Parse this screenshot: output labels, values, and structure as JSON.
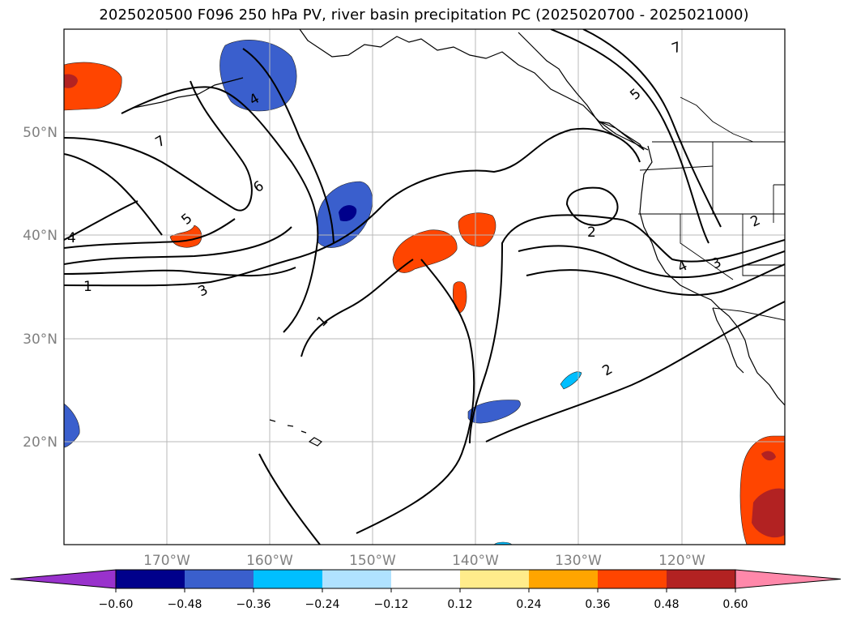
{
  "title": "2025020500 F096 250 hPa PV, river basin precipitation PC (2025020700 - 2025021000)",
  "map": {
    "lon_range": [
      -180,
      -110
    ],
    "lat_range": [
      10,
      60
    ],
    "lon_ticks": [
      "170°W",
      "160°W",
      "150°W",
      "140°W",
      "130°W",
      "120°W"
    ],
    "lat_ticks": [
      "50°N",
      "40°N",
      "30°N",
      "20°N"
    ],
    "gridlines": true,
    "contour_field": "250 hPa PV",
    "contour_labels": [
      "7",
      "4",
      "5",
      "6",
      "1",
      "3",
      "2",
      "7",
      "5",
      "2",
      "4",
      "3",
      "2",
      "1",
      "4",
      "5"
    ],
    "shaded_field": "river basin precipitation PC"
  },
  "colorbar": {
    "tick_labels": [
      "−0.60",
      "−0.48",
      "−0.36",
      "−0.24",
      "−0.12",
      "0.12",
      "0.24",
      "0.36",
      "0.48",
      "0.60"
    ],
    "colors": [
      "#9932cc",
      "#00008b",
      "#3a5fcd",
      "#00bfff",
      "#b0e2ff",
      "#ffffff",
      "#ffec8b",
      "#ffa500",
      "#ff4500",
      "#b22222",
      "#ff88aa"
    ],
    "extend": "both"
  }
}
